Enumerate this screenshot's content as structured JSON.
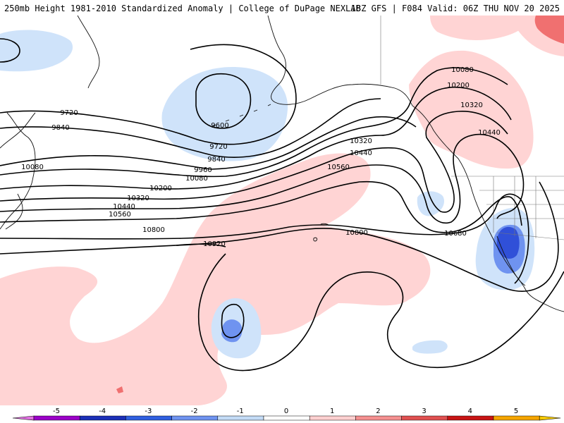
{
  "header": {
    "title_left": "250mb Height 1981-2010 Standardized Anomaly | College of DuPage NEXLAB",
    "title_right": "18Z GFS | F084 Valid: 06Z THU NOV 20 2025"
  },
  "contour_labels": [
    {
      "value": "9600"
    },
    {
      "value": "9720"
    },
    {
      "value": "9720"
    },
    {
      "value": "9840"
    },
    {
      "value": "9840"
    },
    {
      "value": "9960"
    },
    {
      "value": "10080"
    },
    {
      "value": "10080"
    },
    {
      "value": "10080"
    },
    {
      "value": "10200"
    },
    {
      "value": "10200"
    },
    {
      "value": "10320"
    },
    {
      "value": "10320"
    },
    {
      "value": "10320"
    },
    {
      "value": "10440"
    },
    {
      "value": "10440"
    },
    {
      "value": "10440"
    },
    {
      "value": "10560"
    },
    {
      "value": "10560"
    },
    {
      "value": "10680"
    },
    {
      "value": "10800"
    },
    {
      "value": "10800"
    },
    {
      "value": "10920"
    }
  ],
  "colorbar": {
    "ticks": [
      "-5",
      "-4",
      "-3",
      "-2",
      "-1",
      "0",
      "1",
      "2",
      "3",
      "4",
      "5"
    ],
    "colors": [
      "#9b00c8",
      "#1b2fb8",
      "#2f5fe0",
      "#6f93f0",
      "#c3dbf6",
      "#ffffff",
      "#ffd0d0",
      "#f59090",
      "#e05050",
      "#c81414",
      "#f5a500"
    ],
    "left_arrow_color": "#e070e0",
    "right_arrow_color": "#f5c800"
  },
  "palette": {
    "neg_weak": "#cfe3fa",
    "neg_mid": "#6f93f0",
    "neg_strong": "#3050d8",
    "pos_weak": "#ffd4d4",
    "pos_mid": "#f5a0a0",
    "pos_strong": "#f07070"
  }
}
